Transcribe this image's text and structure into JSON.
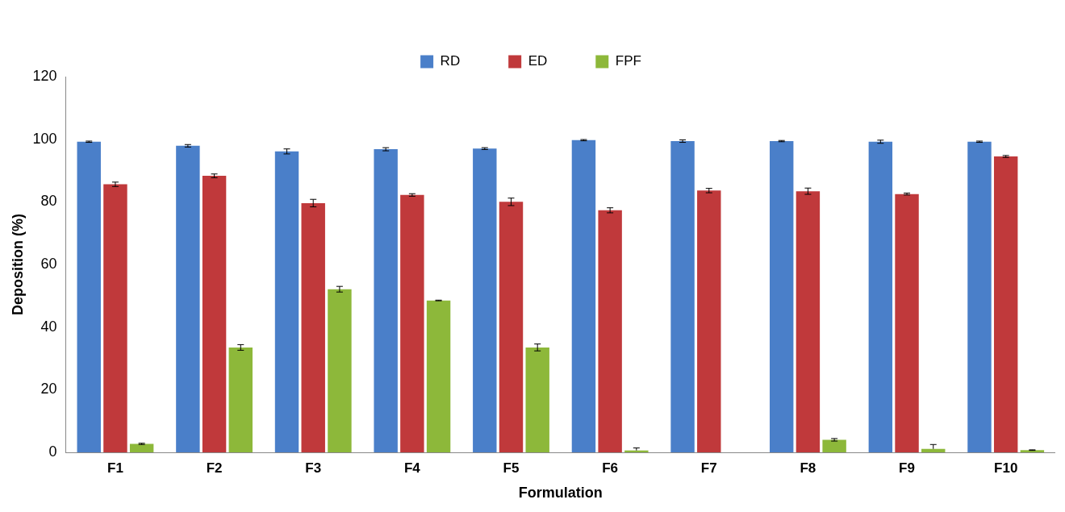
{
  "chart_data": {
    "type": "bar",
    "xlabel": "Formulation",
    "ylabel": "Deposition (%)",
    "categories": [
      "F1",
      "F2",
      "F3",
      "F4",
      "F5",
      "F6",
      "F7",
      "F8",
      "F9",
      "F10"
    ],
    "series": [
      {
        "name": "RD",
        "color": "#4a7fc9",
        "values": [
          99.2,
          97.9,
          96.1,
          96.8,
          97,
          99.7,
          99.4,
          99.4,
          99.2,
          99.2
        ],
        "errors": [
          0.2,
          0.4,
          0.8,
          0.5,
          0.3,
          0.2,
          0.4,
          0.2,
          0.5,
          0.2
        ]
      },
      {
        "name": "ED",
        "color": "#c0393b",
        "values": [
          85.6,
          88.3,
          79.6,
          82.2,
          80,
          77.3,
          83.6,
          83.4,
          82.5,
          94.5
        ],
        "errors": [
          0.7,
          0.6,
          1.2,
          0.4,
          1.2,
          0.8,
          0.7,
          1.0,
          0.3,
          0.3
        ]
      },
      {
        "name": "FPF",
        "color": "#8db83a",
        "values": [
          2.7,
          33.5,
          52.1,
          48.5,
          33.5,
          0.6,
          0,
          4,
          1.1,
          0.7
        ],
        "errors": [
          0.2,
          0.9,
          0.9,
          0.1,
          1.1,
          [
            0.6,
            1.4
          ],
          null,
          0.4,
          [
            1.1,
            2.5
          ],
          0.1
        ]
      }
    ],
    "ylim": [
      0,
      120
    ],
    "yticks": [
      0,
      20,
      40,
      60,
      80,
      100,
      120
    ],
    "grid": false,
    "legend": "top"
  }
}
